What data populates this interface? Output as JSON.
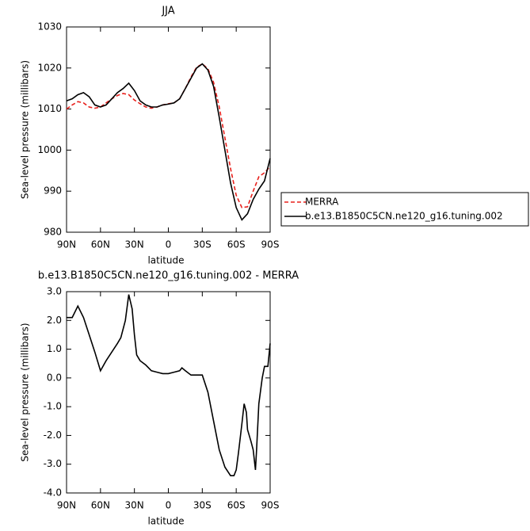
{
  "chart_data": [
    {
      "type": "line",
      "title": "JJA",
      "x_label": "latitude",
      "y_label": "Sea-level pressure (millibars)",
      "x": [
        90,
        85,
        80,
        75,
        70,
        65,
        60,
        55,
        50,
        45,
        40,
        35,
        30,
        25,
        20,
        15,
        10,
        5,
        0,
        -5,
        -10,
        -15,
        -20,
        -25,
        -30,
        -35,
        -40,
        -45,
        -50,
        -55,
        -60,
        -65,
        -70,
        -75,
        -80,
        -85,
        -90
      ],
      "series": [
        {
          "name": "MERRA",
          "color": "#e8201c",
          "line_style": "dashed",
          "values": [
            1010,
            1011,
            1011.8,
            1011.5,
            1010.5,
            1010.2,
            1010.5,
            1011.5,
            1012.5,
            1013.3,
            1013.8,
            1013.5,
            1012.2,
            1011.3,
            1010.5,
            1010.2,
            1010.5,
            1011,
            1011.3,
            1011.5,
            1012.5,
            1015,
            1017.8,
            1020.2,
            1021,
            1019.8,
            1016.5,
            1010.5,
            1003,
            995.5,
            989,
            986,
            986.2,
            990,
            993.5,
            994.5,
            996
          ]
        },
        {
          "name": "b.e13.B1850C5CN.ne120_g16.tuning.002",
          "color": "#000000",
          "line_style": "solid",
          "values": [
            1012,
            1012.5,
            1013.5,
            1014,
            1013,
            1011,
            1010.5,
            1011,
            1012.5,
            1014,
            1015,
            1016.3,
            1014.5,
            1012,
            1011,
            1010.5,
            1010.5,
            1011,
            1011.2,
            1011.5,
            1012.5,
            1015,
            1017.5,
            1020,
            1021,
            1019.5,
            1015.5,
            1008,
            1000,
            992,
            986,
            983,
            984.5,
            988,
            990.5,
            992.5,
            998
          ]
        }
      ],
      "xlim": [
        90,
        -90
      ],
      "xticks": [
        {
          "value": 90,
          "label": "90N"
        },
        {
          "value": 60,
          "label": "60N"
        },
        {
          "value": 30,
          "label": "30N"
        },
        0,
        {
          "value": -30,
          "label": "30S"
        },
        {
          "value": -60,
          "label": "60S"
        },
        {
          "value": -90,
          "label": "90S"
        }
      ],
      "ylim": [
        980,
        1030
      ],
      "yticks": [
        980,
        990,
        1000,
        1010,
        1020,
        1030
      ],
      "legend": "right"
    },
    {
      "type": "line",
      "title": "b.e13.B1850C5CN.ne120_g16.tuning.002 - MERRA",
      "x_label": "latitude",
      "y_label": "Sea-level pressure (millibars)",
      "x": [
        90,
        85,
        80,
        75,
        70,
        65,
        60,
        55,
        50,
        45,
        42,
        38,
        35,
        32,
        30,
        28,
        25,
        20,
        15,
        10,
        5,
        0,
        -5,
        -10,
        -12,
        -15,
        -20,
        -25,
        -30,
        -35,
        -40,
        -45,
        -50,
        -55,
        -58,
        -60,
        -62,
        -65,
        -67,
        -69,
        -70,
        -73,
        -75,
        -77,
        -78,
        -80,
        -83,
        -85,
        -88,
        -90
      ],
      "values": [
        2.1,
        2.1,
        2.5,
        2.1,
        1.5,
        0.9,
        0.25,
        0.6,
        0.9,
        1.2,
        1.4,
        2.0,
        2.9,
        2.4,
        1.5,
        0.8,
        0.6,
        0.45,
        0.25,
        0.2,
        0.15,
        0.15,
        0.2,
        0.25,
        0.35,
        0.25,
        0.1,
        0.1,
        0.1,
        -0.5,
        -1.5,
        -2.5,
        -3.1,
        -3.4,
        -3.4,
        -3.2,
        -2.6,
        -1.6,
        -0.9,
        -1.2,
        -1.8,
        -2.2,
        -2.5,
        -3.2,
        -2.5,
        -0.9,
        0.0,
        0.4,
        0.4,
        1.2
      ],
      "color": "#000000",
      "xlim": [
        90,
        -90
      ],
      "xticks": [
        {
          "value": 90,
          "label": "90N"
        },
        {
          "value": 60,
          "label": "60N"
        },
        {
          "value": 30,
          "label": "30N"
        },
        0,
        {
          "value": -30,
          "label": "30S"
        },
        {
          "value": -60,
          "label": "60S"
        },
        {
          "value": -90,
          "label": "90S"
        }
      ],
      "ylim": [
        -4,
        3
      ],
      "yticks": [
        {
          "value": -4,
          "label": "-4.0"
        },
        {
          "value": -3,
          "label": "-3.0"
        },
        {
          "value": -2,
          "label": "-2.0"
        },
        {
          "value": -1,
          "label": "-1.0"
        },
        {
          "value": 0,
          "label": "0.0"
        },
        {
          "value": 1,
          "label": "1.0"
        },
        {
          "value": 2,
          "label": "2.0"
        },
        {
          "value": 3,
          "label": "3.0"
        }
      ]
    }
  ]
}
